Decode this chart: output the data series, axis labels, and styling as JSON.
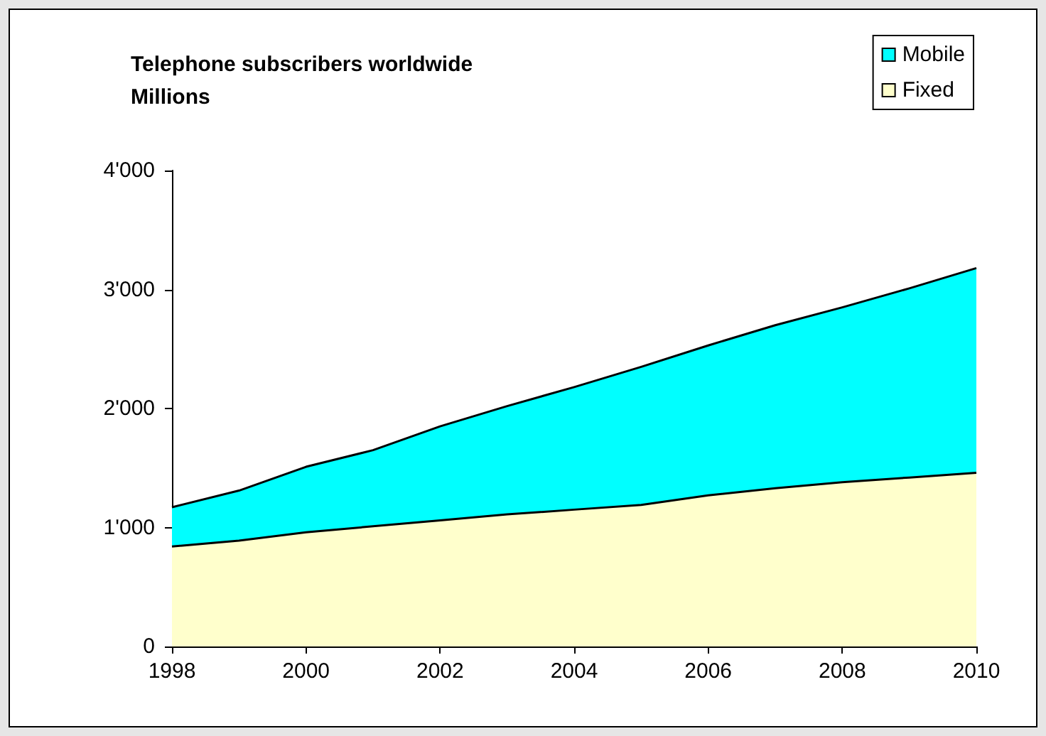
{
  "chart_data": {
    "type": "area",
    "title": "Telephone subscribers worldwide",
    "subtitle": "Millions",
    "x": [
      1998,
      1999,
      2000,
      2001,
      2002,
      2003,
      2004,
      2005,
      2006,
      2007,
      2008,
      2009,
      2010
    ],
    "series": [
      {
        "name": "Fixed",
        "color": "#ffffcc",
        "values": [
          840,
          890,
          960,
          1010,
          1060,
          1110,
          1150,
          1190,
          1270,
          1330,
          1380,
          1420,
          1460
        ]
      },
      {
        "name": "Mobile",
        "color": "#00ffff",
        "values": [
          330,
          420,
          550,
          640,
          790,
          910,
          1030,
          1160,
          1260,
          1370,
          1470,
          1590,
          1720
        ]
      }
    ],
    "stacked": true,
    "xlim": [
      1998,
      2010
    ],
    "xticks": [
      1998,
      2000,
      2002,
      2004,
      2006,
      2008,
      2010
    ],
    "ylim": [
      0,
      4000
    ],
    "yticks": [
      0,
      {
        "value": 1000,
        "label": "1'000"
      },
      {
        "value": 2000,
        "label": "2'000"
      },
      {
        "value": 3000,
        "label": "3'000"
      },
      {
        "value": 4000,
        "label": "4'000"
      }
    ],
    "grid": false,
    "legend": "top right",
    "marker": "none",
    "line_style": "solid"
  }
}
